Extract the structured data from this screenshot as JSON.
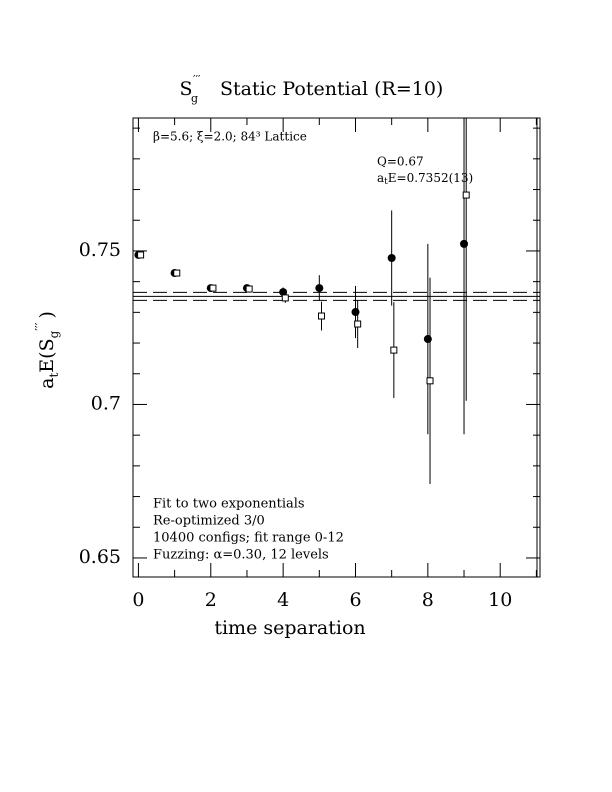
{
  "chart_data": {
    "type": "scatter",
    "title_symbol": "S",
    "title_sub": "g",
    "title_sup": "′′′",
    "title": "Static Potential (R=10)",
    "ylabel_parts": [
      "a",
      "t",
      "E(S",
      "g",
      "′′′",
      ")"
    ],
    "xlabel": "time separation",
    "annotations": [
      "β=5.6; ξ=2.0; 84³ Lattice",
      "Q=0.67"
    ],
    "fit_label_parts": [
      "a",
      "t",
      "E=0.7352(13)"
    ],
    "notes": [
      "Fit to two exponentials",
      "Re-optimized 3/0",
      "10400 configs; fit range 0-12",
      "Fuzzing: α=0.30, 12 levels"
    ],
    "fit_value": 0.7352,
    "fit_error": 0.0013,
    "xlim": [
      -0.15,
      11.1
    ],
    "ylim": [
      0.6438,
      0.7933
    ],
    "xticks": [
      0,
      2,
      4,
      6,
      8,
      10
    ],
    "xminor": [
      1,
      3,
      5,
      7,
      9,
      11
    ],
    "yticks": [
      0.65,
      0.7,
      0.75
    ],
    "yminor": [
      0.66,
      0.67,
      0.68,
      0.69,
      0.71,
      0.72,
      0.73,
      0.74,
      0.76,
      0.77,
      0.78,
      0.79
    ],
    "series": [
      {
        "marker": "filled-circle",
        "color": "#000",
        "x": [
          0,
          1,
          2,
          3,
          4,
          5,
          6,
          7,
          8,
          9
        ],
        "values": [
          0.7487,
          0.7428,
          0.7379,
          0.7379,
          0.7366,
          0.7379,
          0.7301,
          0.7477,
          0.7213,
          0.7523
        ],
        "errors": [
          0.0005,
          0.0006,
          0.0008,
          0.001,
          0.0015,
          0.0042,
          0.0085,
          0.0155,
          0.031,
          0.062
        ]
      },
      {
        "marker": "open-square",
        "color": "#000",
        "x": [
          0.06,
          1.06,
          2.06,
          3.06,
          4.06,
          5.06,
          6.06,
          7.06,
          8.06,
          9.06
        ],
        "values": [
          0.7487,
          0.7428,
          0.7379,
          0.7376,
          0.7347,
          0.7288,
          0.7262,
          0.7177,
          0.7077,
          0.7682
        ],
        "errors": [
          0.0005,
          0.0006,
          0.0008,
          0.001,
          0.0016,
          0.0047,
          0.0078,
          0.0156,
          0.0336,
          0.067
        ]
      }
    ]
  }
}
